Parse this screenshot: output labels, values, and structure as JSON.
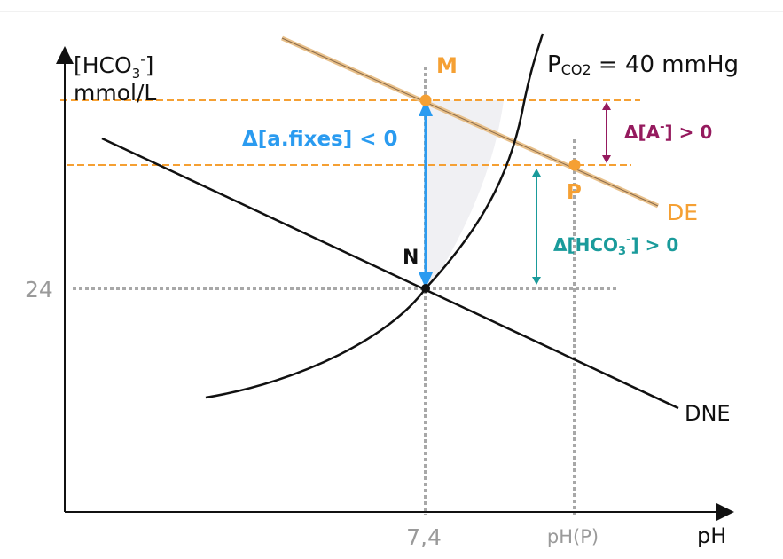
{
  "axes": {
    "y_label_line1": "[HCO",
    "y_label_sub": "3",
    "y_label_sup": "-",
    "y_label_close": "]",
    "y_label_line2": "mmol/L",
    "x_label": "pH",
    "y_tick": "24",
    "x_tick_1": "7,4",
    "x_tick_2": "pH(P)"
  },
  "curves": {
    "isobar_prefix": "P",
    "isobar_sub": "CO2",
    "isobar_value": " = 40 mmHg",
    "buffer_line": "DNE",
    "equilibrium_line": "DE"
  },
  "points": {
    "m": "M",
    "n": "N",
    "p": "P"
  },
  "annotations": {
    "delta_fixed_acids": "Δ[a.fixes] < 0",
    "delta_anion_prefix": "Δ[A",
    "delta_anion_sup": "-",
    "delta_anion_suffix": "] > 0",
    "delta_hco3_prefix": "Δ[HCO",
    "delta_hco3_sub": "3",
    "delta_hco3_sup": "-",
    "delta_hco3_suffix": "] > 0"
  },
  "colors": {
    "orange": "#f5a033",
    "blue": "#2a9bf0",
    "purple": "#951a5e",
    "teal": "#1a9b9b",
    "grey": "#9a9a9a",
    "black": "#111111"
  }
}
